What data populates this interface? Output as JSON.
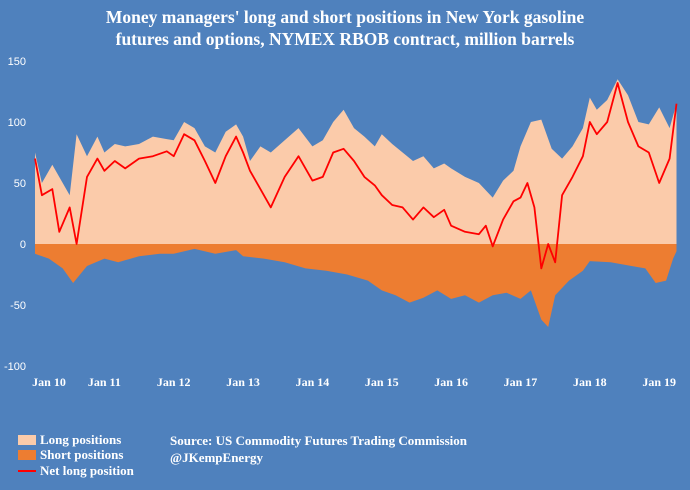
{
  "title_line1": "Money managers' long and short positions in New York gasoline",
  "title_line2": "futures and options, NYMEX RBOB contract, million barrels",
  "source_line1": "Source: US Commodity Futures Trading Commission",
  "source_line2": "@JKempEnergy",
  "colors": {
    "background": "#4f81bd",
    "long": "#fbcbaa",
    "short": "#ed7d31",
    "net": "#ff0000",
    "text": "#ffffff"
  },
  "chart_data": {
    "type": "area",
    "title": "Money managers' long and short positions in New York gasoline futures and options, NYMEX RBOB contract, million barrels",
    "xlabel": "",
    "ylabel": "million barrels",
    "x_tick_labels": [
      "Jan 10",
      "Jan 11",
      "Jan 12",
      "Jan 13",
      "Jan 14",
      "Jan 15",
      "Jan 16",
      "Jan 17",
      "Jan 18",
      "Jan 19"
    ],
    "y_ticks": [
      150,
      100,
      50,
      0,
      -50,
      -100
    ],
    "ylim": [
      -100,
      150
    ],
    "xlim": [
      2010.0,
      2019.3
    ],
    "legend_position": "bottom-left",
    "series": [
      {
        "name": "Long positions",
        "style": "area",
        "x": [
          2010.0,
          2010.1,
          2010.25,
          2010.4,
          2010.5,
          2010.6,
          2010.75,
          2010.9,
          2011.0,
          2011.15,
          2011.3,
          2011.5,
          2011.7,
          2011.9,
          2012.0,
          2012.15,
          2012.3,
          2012.45,
          2012.6,
          2012.75,
          2012.9,
          2013.0,
          2013.1,
          2013.25,
          2013.4,
          2013.6,
          2013.8,
          2014.0,
          2014.15,
          2014.3,
          2014.45,
          2014.6,
          2014.75,
          2014.9,
          2015.0,
          2015.15,
          2015.3,
          2015.45,
          2015.6,
          2015.75,
          2015.9,
          2016.0,
          2016.2,
          2016.4,
          2016.6,
          2016.75,
          2016.9,
          2017.0,
          2017.15,
          2017.3,
          2017.45,
          2017.6,
          2017.75,
          2017.9,
          2018.0,
          2018.1,
          2018.25,
          2018.4,
          2018.55,
          2018.7,
          2018.85,
          2019.0,
          2019.15,
          2019.25
        ],
        "values": [
          75,
          50,
          65,
          50,
          40,
          90,
          72,
          88,
          75,
          82,
          80,
          82,
          88,
          86,
          85,
          100,
          95,
          80,
          75,
          92,
          98,
          88,
          68,
          80,
          75,
          85,
          95,
          80,
          85,
          100,
          110,
          95,
          88,
          80,
          90,
          82,
          75,
          68,
          72,
          62,
          66,
          62,
          55,
          50,
          38,
          52,
          60,
          80,
          100,
          102,
          78,
          70,
          80,
          95,
          120,
          110,
          118,
          135,
          122,
          100,
          98,
          112,
          95,
          115
        ]
      },
      {
        "name": "Short positions",
        "style": "area",
        "x": [
          2010.0,
          2010.2,
          2010.4,
          2010.55,
          2010.75,
          2011.0,
          2011.2,
          2011.5,
          2011.8,
          2012.0,
          2012.3,
          2012.6,
          2012.9,
          2013.0,
          2013.3,
          2013.6,
          2013.9,
          2014.2,
          2014.5,
          2014.8,
          2015.0,
          2015.2,
          2015.4,
          2015.6,
          2015.8,
          2016.0,
          2016.2,
          2016.4,
          2016.6,
          2016.8,
          2017.0,
          2017.15,
          2017.3,
          2017.4,
          2017.5,
          2017.7,
          2017.9,
          2018.0,
          2018.3,
          2018.6,
          2018.8,
          2018.95,
          2019.1,
          2019.2,
          2019.25
        ],
        "values": [
          -8,
          -12,
          -20,
          -32,
          -18,
          -12,
          -15,
          -10,
          -8,
          -8,
          -4,
          -8,
          -5,
          -10,
          -12,
          -15,
          -20,
          -22,
          -25,
          -30,
          -38,
          -42,
          -48,
          -44,
          -38,
          -45,
          -42,
          -48,
          -42,
          -40,
          -45,
          -38,
          -62,
          -68,
          -42,
          -30,
          -22,
          -14,
          -15,
          -18,
          -20,
          -32,
          -30,
          -12,
          -6
        ]
      },
      {
        "name": "Net long position",
        "style": "line",
        "x": [
          2010.0,
          2010.1,
          2010.25,
          2010.35,
          2010.5,
          2010.6,
          2010.75,
          2010.9,
          2011.0,
          2011.15,
          2011.3,
          2011.5,
          2011.7,
          2011.9,
          2012.0,
          2012.15,
          2012.3,
          2012.45,
          2012.6,
          2012.75,
          2012.9,
          2013.0,
          2013.1,
          2013.25,
          2013.4,
          2013.6,
          2013.8,
          2014.0,
          2014.15,
          2014.3,
          2014.45,
          2014.6,
          2014.75,
          2014.9,
          2015.0,
          2015.15,
          2015.3,
          2015.45,
          2015.6,
          2015.75,
          2015.9,
          2016.0,
          2016.2,
          2016.4,
          2016.5,
          2016.6,
          2016.75,
          2016.9,
          2017.0,
          2017.1,
          2017.2,
          2017.3,
          2017.4,
          2017.5,
          2017.6,
          2017.75,
          2017.9,
          2018.0,
          2018.1,
          2018.25,
          2018.4,
          2018.55,
          2018.7,
          2018.85,
          2019.0,
          2019.15,
          2019.25
        ],
        "values": [
          70,
          40,
          45,
          10,
          30,
          0,
          55,
          70,
          60,
          68,
          62,
          70,
          72,
          76,
          72,
          90,
          85,
          68,
          50,
          72,
          88,
          75,
          60,
          45,
          30,
          55,
          72,
          52,
          55,
          75,
          78,
          68,
          55,
          48,
          40,
          32,
          30,
          20,
          30,
          22,
          28,
          15,
          10,
          8,
          15,
          -2,
          20,
          35,
          38,
          50,
          30,
          -20,
          0,
          -15,
          40,
          55,
          72,
          100,
          90,
          100,
          132,
          100,
          80,
          75,
          50,
          70,
          115
        ]
      }
    ]
  }
}
